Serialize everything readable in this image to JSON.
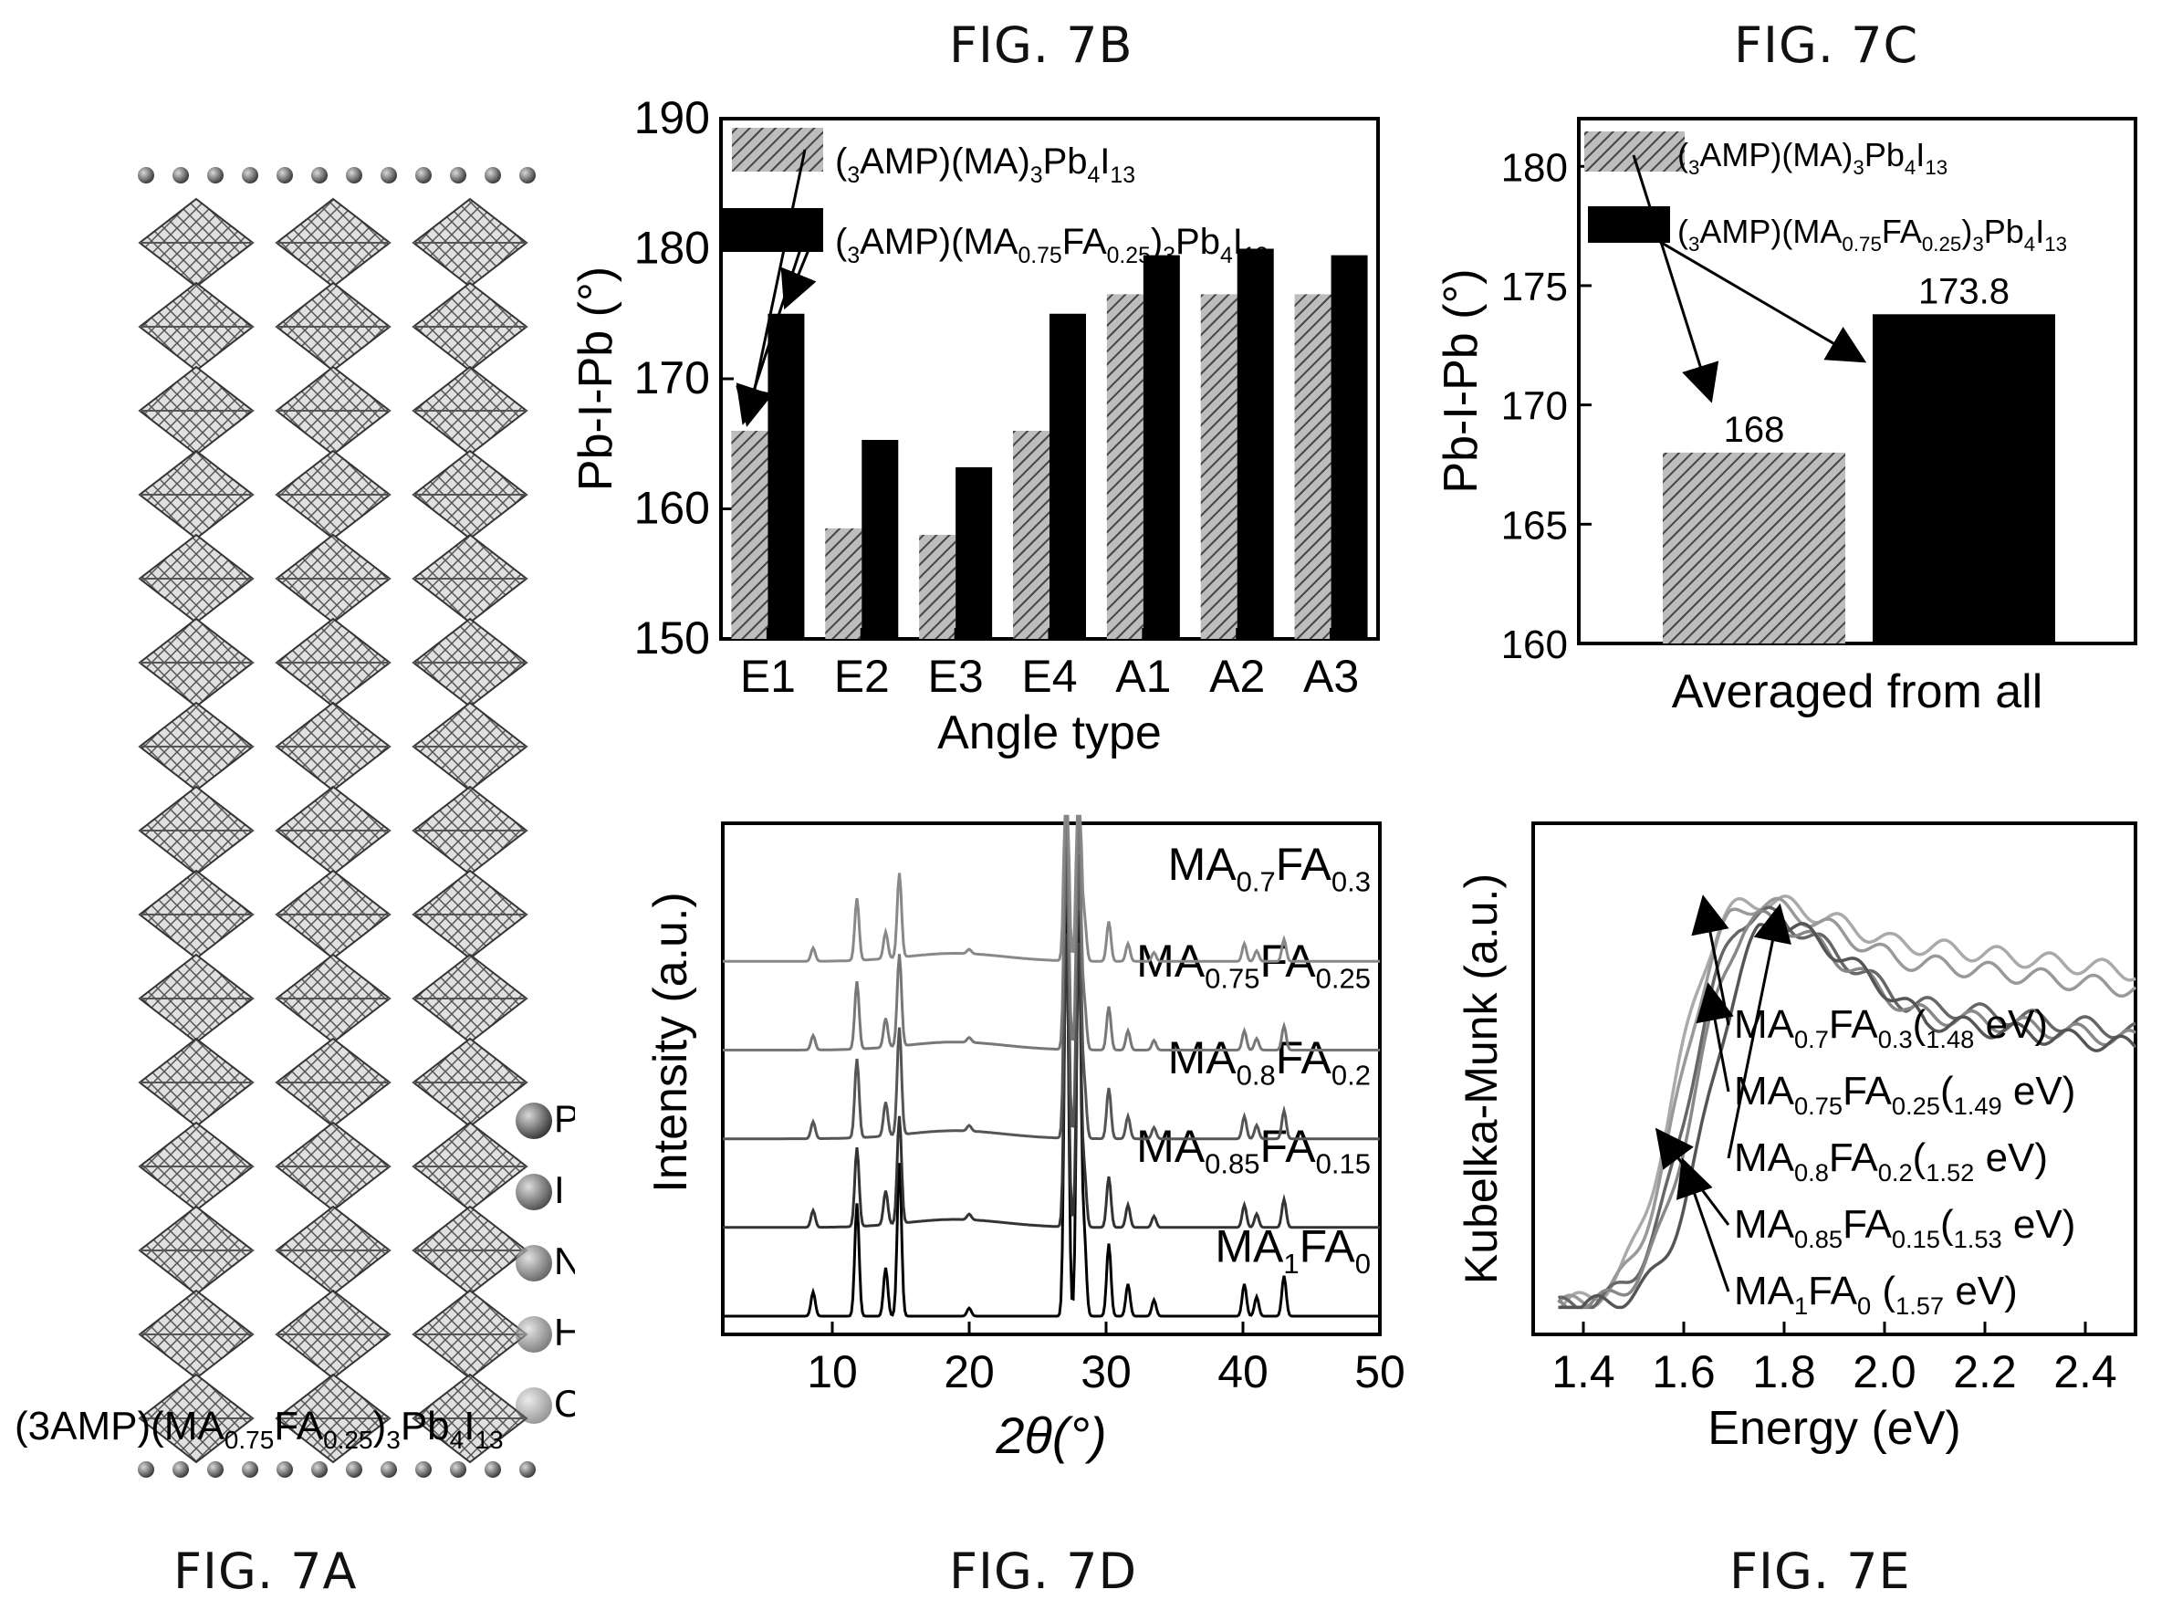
{
  "figures": {
    "a": "FIG. 7A",
    "b": "FIG. 7B",
    "c": "FIG. 7C",
    "d": "FIG. 7D",
    "e": "FIG. 7E"
  },
  "structure": {
    "caption": "(3AMP)(MA0.75FA0.25)3Pb4I13",
    "legend": [
      "Pb",
      "I",
      "N",
      "H",
      "C"
    ]
  },
  "chart_data": [
    {
      "id": "fig7b",
      "type": "bar",
      "categories": [
        "E1",
        "E2",
        "E3",
        "E4",
        "A1",
        "A2",
        "A3"
      ],
      "series": [
        {
          "name": "(3AMP)(MA)3Pb4I13",
          "values": [
            166,
            158.5,
            158,
            166,
            176.5,
            176.5,
            176.5
          ]
        },
        {
          "name": "(3AMP)(MA0.75FA0.25)3Pb4I13",
          "values": [
            175,
            165.3,
            163.2,
            175,
            179.5,
            180,
            179.5
          ]
        }
      ],
      "xlabel": "Angle type",
      "ylabel": "Pb-I-Pb (°)",
      "ylim": [
        150,
        190
      ],
      "yticks": [
        150,
        160,
        170,
        180,
        190
      ]
    },
    {
      "id": "fig7c",
      "type": "bar",
      "categories": [
        "Averaged from all"
      ],
      "series": [
        {
          "name": "(3AMP)(MA)3Pb4I13",
          "values": [
            168
          ],
          "label": "168"
        },
        {
          "name": "(3AMP)(MA0.75FA0.25)3Pb4I13",
          "values": [
            173.8
          ],
          "label": "173.8"
        }
      ],
      "xlabel": "Averaged from all",
      "ylabel": "Pb-I-Pb (°)",
      "ylim": [
        160,
        182
      ],
      "yticks": [
        160,
        165,
        170,
        175,
        180
      ]
    },
    {
      "id": "fig7d",
      "type": "line",
      "xlabel": "2θ(°)",
      "ylabel": "Intensity (a.u.)",
      "xlim": [
        2,
        50
      ],
      "xticks": [
        10,
        20,
        30,
        40,
        50
      ],
      "peaks": [
        {
          "x": 8.6,
          "h": 0.15
        },
        {
          "x": 11.8,
          "h": 0.7
        },
        {
          "x": 13.9,
          "h": 0.3
        },
        {
          "x": 14.9,
          "h": 0.95
        },
        {
          "x": 20.0,
          "h": 0.05
        },
        {
          "x": 27.1,
          "h": 2.6
        },
        {
          "x": 28.0,
          "h": 2.5
        },
        {
          "x": 28.4,
          "h": 0.5
        },
        {
          "x": 30.2,
          "h": 0.45
        },
        {
          "x": 31.6,
          "h": 0.2
        },
        {
          "x": 33.5,
          "h": 0.1
        },
        {
          "x": 40.1,
          "h": 0.2
        },
        {
          "x": 41.0,
          "h": 0.12
        },
        {
          "x": 43.0,
          "h": 0.25
        }
      ],
      "series": [
        {
          "name": "MA1FA0",
          "offset": 0.0,
          "scale": 1.0
        },
        {
          "name": "MA0.85FA0.15",
          "offset": 0.55,
          "scale": 0.7
        },
        {
          "name": "MA0.8FA0.2",
          "offset": 1.1,
          "scale": 0.7
        },
        {
          "name": "MA0.75FA0.25",
          "offset": 1.65,
          "scale": 0.6
        },
        {
          "name": "MA0.7FA0.3",
          "offset": 2.2,
          "scale": 0.55
        }
      ]
    },
    {
      "id": "fig7e",
      "type": "line",
      "xlabel": "Energy (eV)",
      "ylabel": "Kubelka-Munk (a.u.)",
      "xlim": [
        1.3,
        2.5
      ],
      "xticks": [
        1.4,
        1.6,
        1.8,
        2.0,
        2.2,
        2.4
      ],
      "series": [
        {
          "name": "MA0.7FA0.3(1.48 eV)",
          "edge": 1.58,
          "peak": 1.0,
          "tail": 0.9
        },
        {
          "name": "MA0.75FA0.25(1.49 eV)",
          "edge": 1.59,
          "peak": 1.0,
          "tail": 0.86
        },
        {
          "name": "MA0.8FA0.2(1.52 eV)",
          "edge": 1.61,
          "peak": 0.99,
          "tail": 0.76
        },
        {
          "name": "MA0.85FA0.15(1.53 eV)",
          "edge": 1.62,
          "peak": 0.98,
          "tail": 0.74
        },
        {
          "name": "MA1FA0 (1.57 eV)",
          "edge": 1.65,
          "peak": 0.97,
          "tail": 0.72
        }
      ]
    }
  ]
}
